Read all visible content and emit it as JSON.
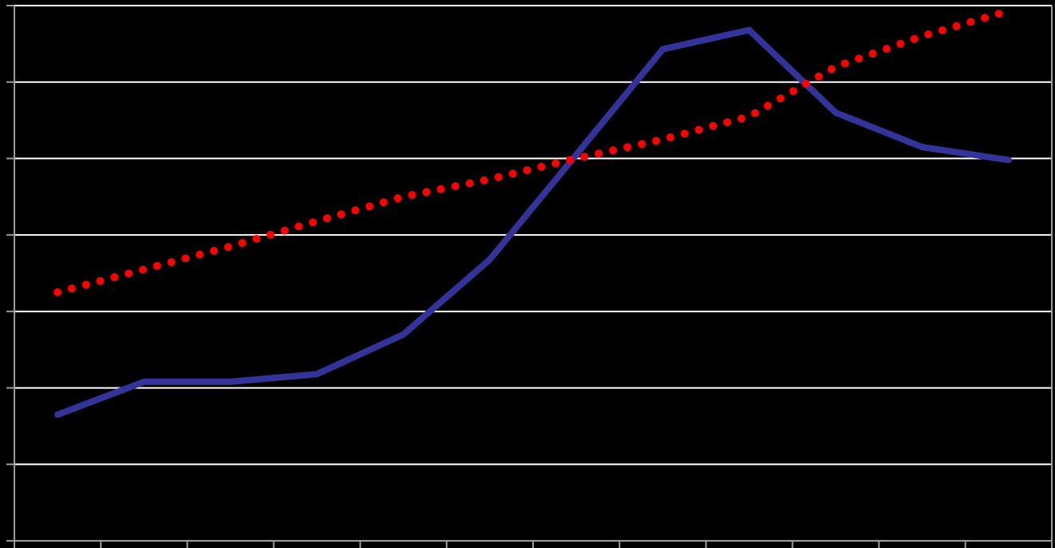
{
  "chart_data": {
    "type": "line",
    "title": "",
    "xlabel": "",
    "ylabel": "",
    "grid": true,
    "legend": "none",
    "x": [
      1,
      2,
      3,
      4,
      5,
      6,
      7,
      8,
      9,
      10,
      11,
      12
    ],
    "xlim": [
      0.5,
      12.5
    ],
    "ylim": [
      0,
      7
    ],
    "series": [
      {
        "style": "solid",
        "color": "#333399",
        "values": [
          1.65,
          2.08,
          2.08,
          2.18,
          2.7,
          3.68,
          5.05,
          6.43,
          6.68,
          5.6,
          5.15,
          4.98
        ]
      },
      {
        "style": "dotted",
        "color": "#ff0000",
        "values": [
          3.25,
          3.55,
          3.85,
          4.18,
          4.5,
          4.73,
          5.0,
          5.25,
          5.55,
          6.2,
          6.6,
          6.93
        ]
      }
    ]
  },
  "colors": {
    "background": "#000000",
    "grid": "#ffffff",
    "axis": "#9b9b9b"
  }
}
